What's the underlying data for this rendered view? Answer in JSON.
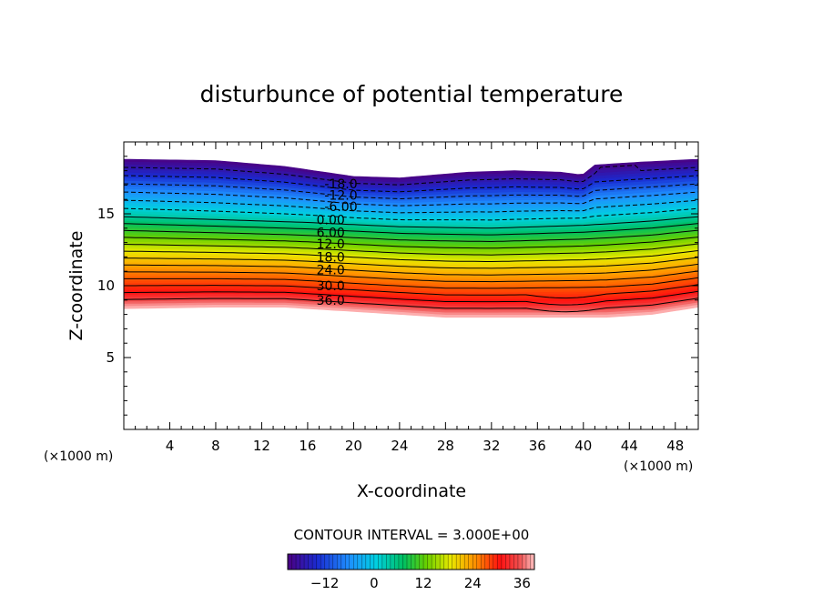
{
  "chart_data": {
    "type": "contour",
    "title": "disturbunce of potential temperature",
    "xlabel": "X-coordinate",
    "ylabel": "Z-coordinate",
    "x_unit": "(×1000 m)",
    "y_unit": "(×1000 m)",
    "xlim": [
      0,
      50
    ],
    "ylim": [
      0,
      20
    ],
    "x_ticks": [
      4,
      8,
      12,
      16,
      20,
      24,
      28,
      32,
      36,
      40,
      44,
      48
    ],
    "y_ticks": [
      5,
      10,
      15
    ],
    "contour_interval": "CONTOUR INTERVAL = 3.000E+00",
    "contour_labels": [
      {
        "text": "-18.0",
        "x": 18.9,
        "z": 17.1
      },
      {
        "text": "-12.0",
        "x": 18.9,
        "z": 16.3
      },
      {
        "text": "-6.00",
        "x": 18.9,
        "z": 15.5
      },
      {
        "text": "0.00",
        "x": 18.0,
        "z": 14.6
      },
      {
        "text": "6.00",
        "x": 18.0,
        "z": 13.7
      },
      {
        "text": "12.0",
        "x": 18.0,
        "z": 12.9
      },
      {
        "text": "18.0",
        "x": 18.0,
        "z": 12.0
      },
      {
        "text": "24.0",
        "x": 18.0,
        "z": 11.1
      },
      {
        "text": "30.0",
        "x": 18.0,
        "z": 10.0
      },
      {
        "text": "36.0",
        "x": 18.0,
        "z": 9.0
      }
    ],
    "colorbar": {
      "ticks": [
        -12,
        0,
        12,
        24,
        36
      ],
      "range": [
        -21,
        39
      ]
    },
    "field": {
      "top_boundary": [
        [
          0,
          18.8
        ],
        [
          8,
          18.7
        ],
        [
          14,
          18.3
        ],
        [
          20,
          17.6
        ],
        [
          24,
          17.5
        ],
        [
          30,
          17.9
        ],
        [
          34,
          18.0
        ],
        [
          38,
          17.9
        ],
        [
          39.9,
          17.7
        ],
        [
          41,
          18.4
        ],
        [
          45,
          18.6
        ],
        [
          50,
          18.8
        ]
      ],
      "bottom_boundary": [
        [
          0,
          8.4
        ],
        [
          8,
          8.5
        ],
        [
          14,
          8.5
        ],
        [
          20,
          8.2
        ],
        [
          28,
          7.8
        ],
        [
          34,
          7.8
        ],
        [
          42,
          7.8
        ],
        [
          46,
          8.0
        ],
        [
          50,
          8.5
        ]
      ],
      "mid_height": [
        [
          0,
          14.8
        ],
        [
          8,
          14.6
        ],
        [
          16,
          14.4
        ],
        [
          24,
          14.1
        ],
        [
          32,
          14.0
        ],
        [
          40,
          14.2
        ],
        [
          46,
          14.5
        ],
        [
          50,
          14.8
        ]
      ]
    }
  }
}
